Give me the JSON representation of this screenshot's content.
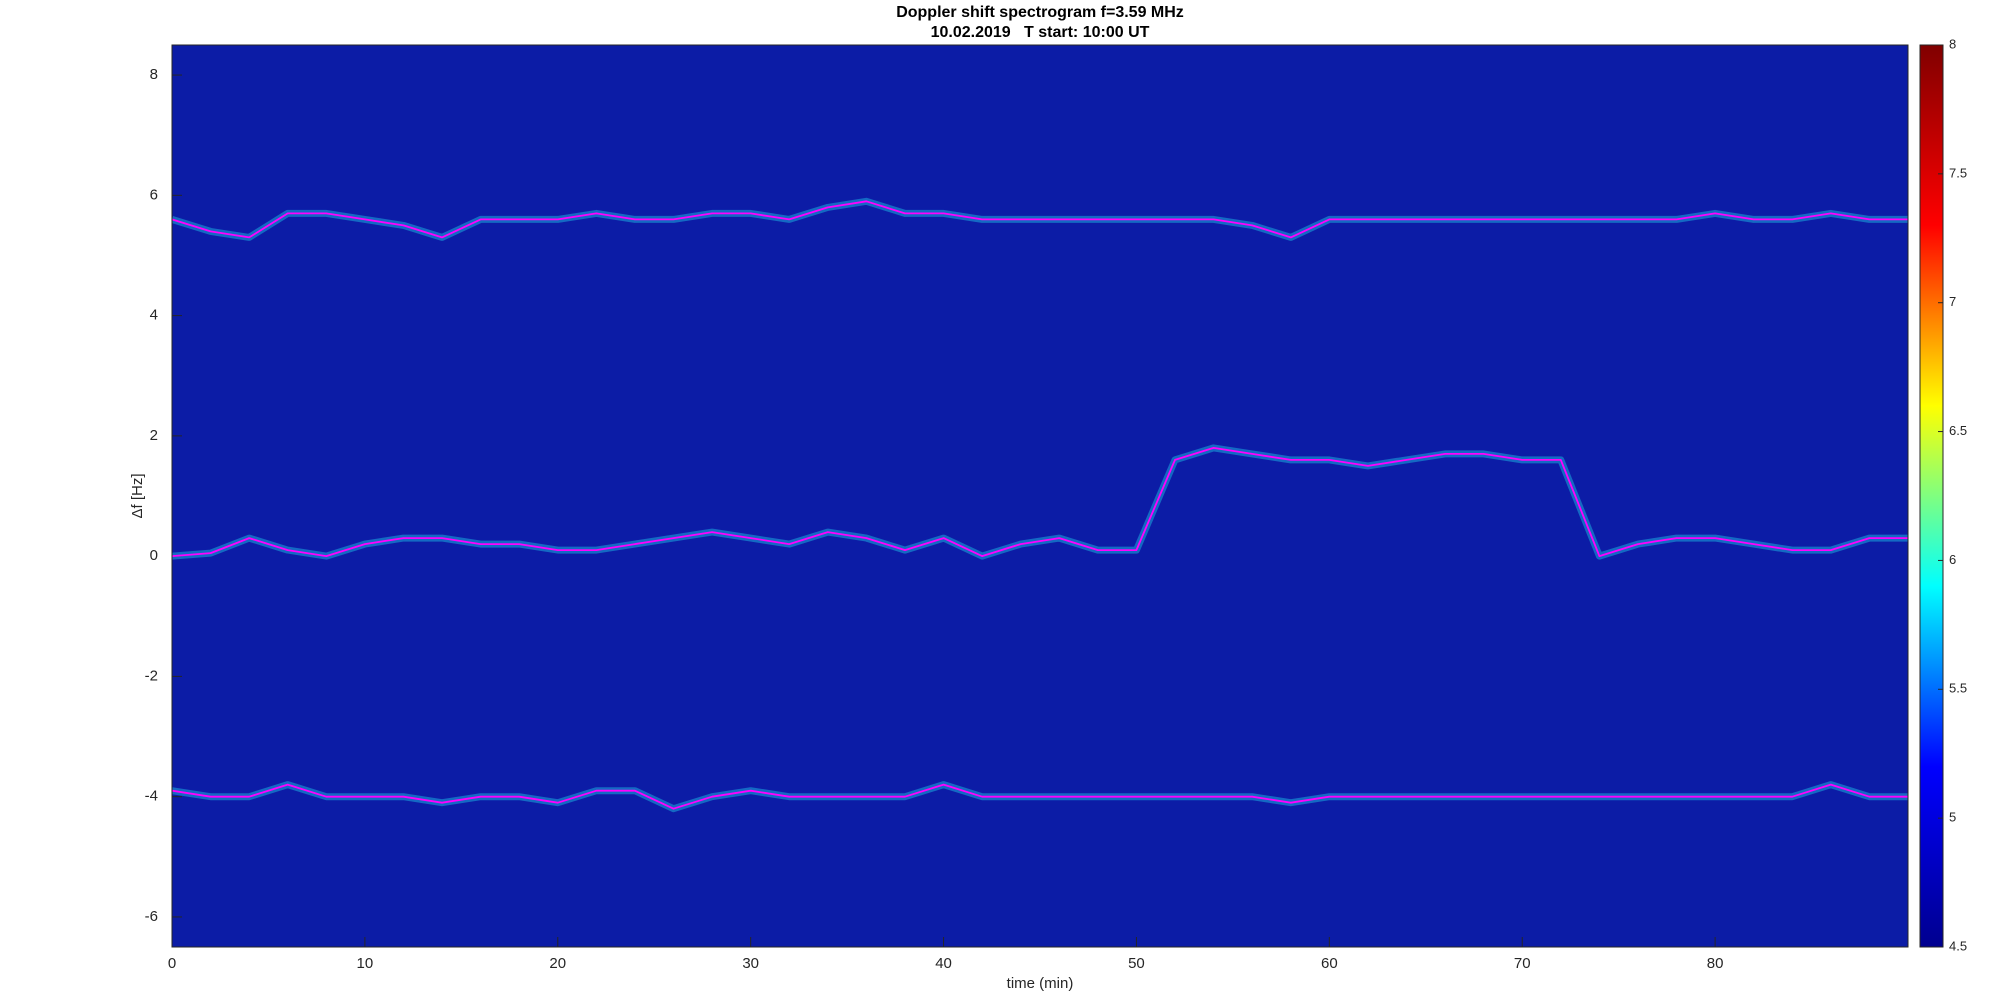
{
  "chart_data": {
    "type": "line",
    "title": "Doppler shift spectrogram f=3.59 MHz",
    "subtitle": "10.02.2019   T start: 10:00 UT",
    "x_label": "time (min)",
    "y_label": "Δf [Hz]",
    "background": "#0c1ca6",
    "x": [
      0,
      2,
      4,
      6,
      8,
      10,
      12,
      14,
      16,
      18,
      20,
      22,
      24,
      26,
      28,
      30,
      32,
      34,
      36,
      38,
      40,
      42,
      44,
      46,
      48,
      50,
      52,
      54,
      56,
      58,
      60,
      62,
      64,
      66,
      68,
      70,
      72,
      74,
      76,
      78,
      80,
      82,
      84,
      86,
      88,
      90
    ],
    "series": [
      {
        "color": "#ff00ff",
        "values": [
          5.6,
          5.4,
          5.3,
          5.7,
          5.7,
          5.6,
          5.5,
          5.3,
          5.6,
          5.6,
          5.6,
          5.7,
          5.6,
          5.6,
          5.7,
          5.7,
          5.6,
          5.8,
          5.9,
          5.7,
          5.7,
          5.6,
          5.6,
          5.6,
          5.6,
          5.6,
          5.6,
          5.6,
          5.5,
          5.3,
          5.6,
          5.6,
          5.6,
          5.6,
          5.6,
          5.6,
          5.6,
          5.6,
          5.6,
          5.6,
          5.7,
          5.6,
          5.6,
          5.7,
          5.6,
          5.6
        ]
      },
      {
        "color": "#ff00ff",
        "values": [
          0.0,
          0.05,
          0.3,
          0.1,
          0.0,
          0.2,
          0.3,
          0.3,
          0.2,
          0.2,
          0.1,
          0.1,
          0.2,
          0.3,
          0.4,
          0.3,
          0.2,
          0.4,
          0.3,
          0.1,
          0.3,
          0.0,
          0.2,
          0.3,
          0.1,
          0.1,
          1.6,
          1.8,
          1.7,
          1.6,
          1.6,
          1.5,
          1.6,
          1.7,
          1.7,
          1.6,
          1.6,
          0.0,
          0.2,
          0.3,
          0.3,
          0.2,
          0.1,
          0.1,
          0.3,
          0.3
        ]
      },
      {
        "color": "#ff00ff",
        "values": [
          -3.9,
          -4.0,
          -4.0,
          -3.8,
          -4.0,
          -4.0,
          -4.0,
          -4.1,
          -4.0,
          -4.0,
          -4.1,
          -3.9,
          -3.9,
          -4.2,
          -4.0,
          -3.9,
          -4.0,
          -4.0,
          -4.0,
          -4.0,
          -3.8,
          -4.0,
          -4.0,
          -4.0,
          -4.0,
          -4.0,
          -4.0,
          -4.0,
          -4.0,
          -4.1,
          -4.0,
          -4.0,
          -4.0,
          -4.0,
          -4.0,
          -4.0,
          -4.0,
          -4.0,
          -4.0,
          -4.0,
          -4.0,
          -4.0,
          -4.0,
          -3.8,
          -4.0,
          -4.0
        ]
      }
    ],
    "xlim": [
      0,
      90
    ],
    "xticks": [
      0,
      10,
      20,
      30,
      40,
      50,
      60,
      70,
      80
    ],
    "ylim": [
      -6.5,
      8.5
    ],
    "yticks": [
      -6,
      -4,
      -2,
      0,
      2,
      4,
      6,
      8
    ],
    "colorbar": {
      "lim": [
        4.5,
        8
      ],
      "ticks": [
        4.5,
        5,
        5.5,
        6,
        6.5,
        7,
        7.5,
        8
      ],
      "colors": [
        "#00008f",
        "#0000ff",
        "#00ffff",
        "#ffff00",
        "#ff0000",
        "#800000"
      ]
    }
  }
}
